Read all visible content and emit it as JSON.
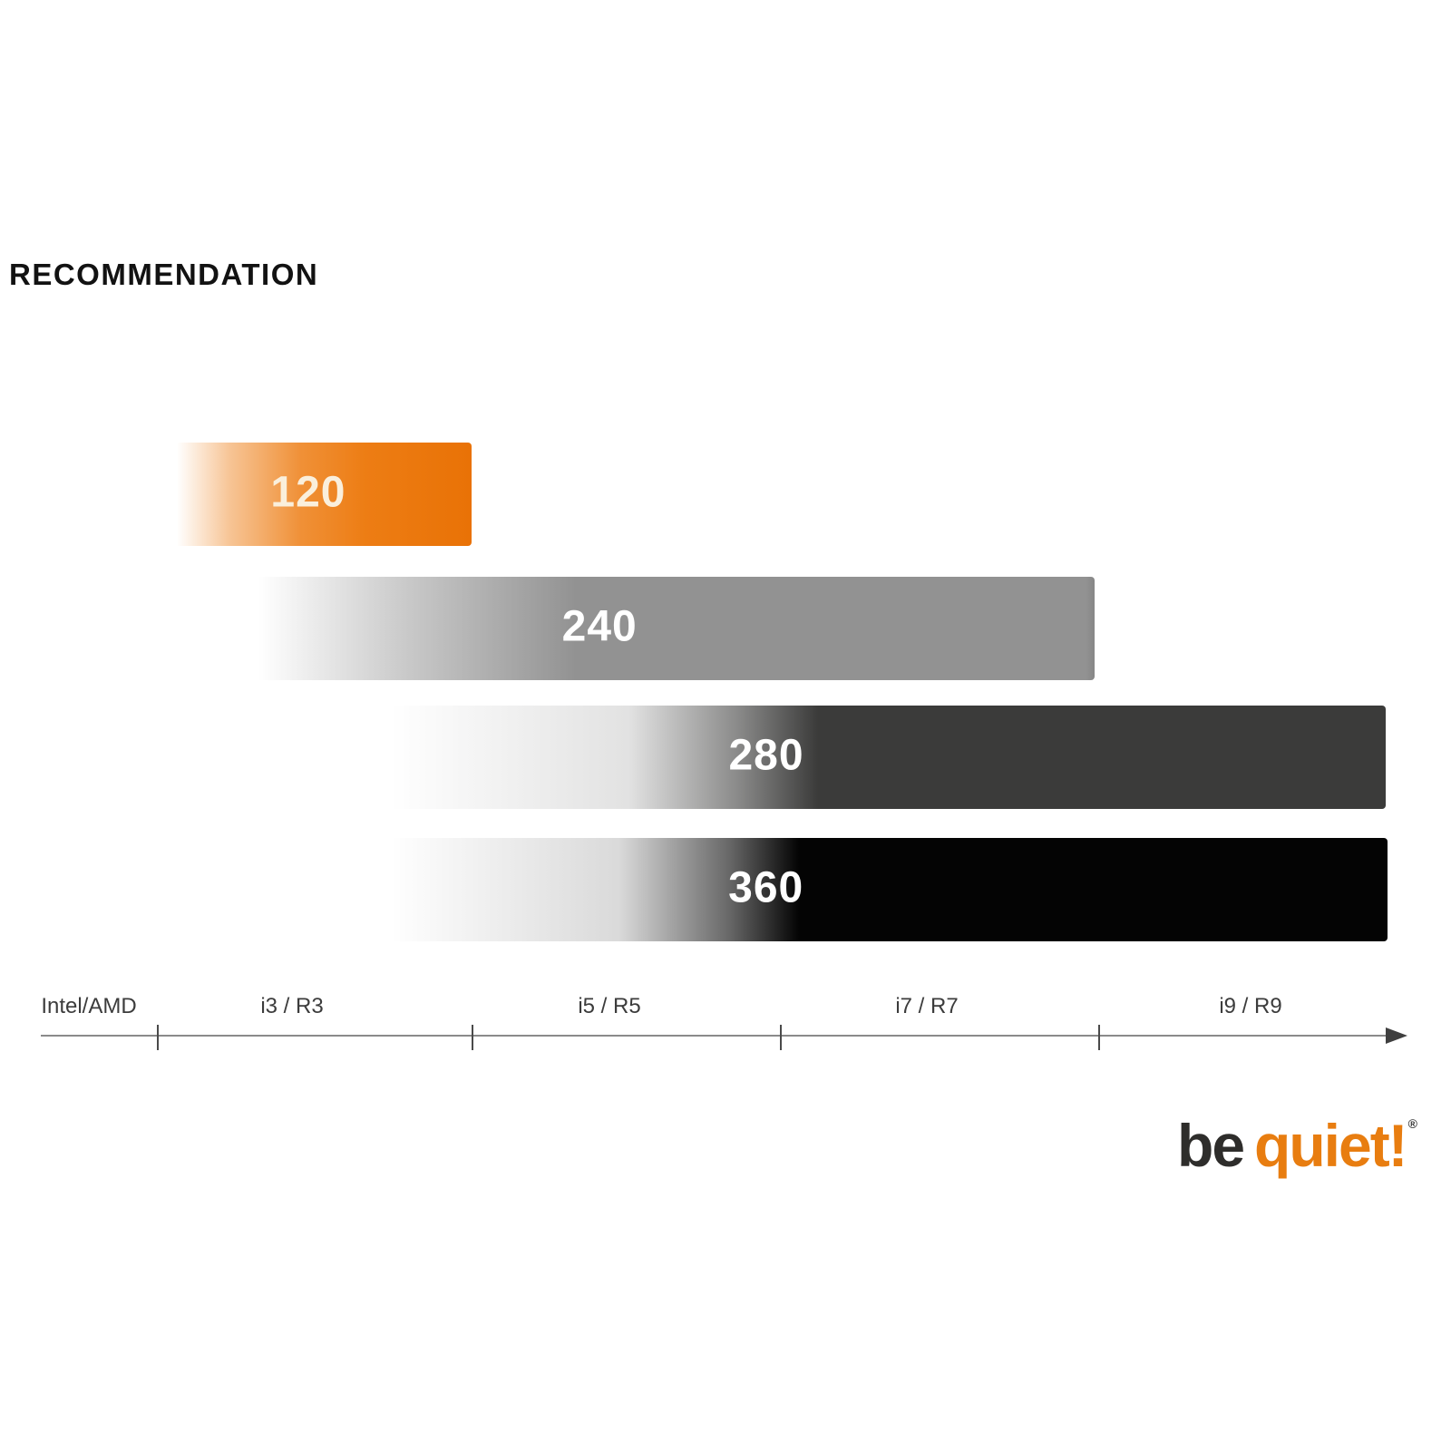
{
  "title": "RECOMMENDATION",
  "chart_data": {
    "type": "bar",
    "orientation": "horizontal-range",
    "title": "RECOMMENDATION",
    "subtitle": "",
    "unit_hint": "radiator size in mm",
    "axis": {
      "position": "bottom",
      "arrow_end": true,
      "tick_labels": [
        "Intel/AMD",
        "i3 / R3",
        "i5 / R5",
        "i7 / R7",
        "i9 / R9"
      ]
    },
    "bars": [
      {
        "label": "120",
        "value": 120,
        "color": "#ed7d14",
        "fade_from": "white-left",
        "starts_at_segment": "i3 / R3",
        "ends_at_segment": "i3 / R3",
        "start_frac": 0.1,
        "end_frac": 0.315
      },
      {
        "label": "240",
        "value": 240,
        "color": "#929292",
        "fade_from": "white-left",
        "starts_at_segment": "i3 / R3",
        "ends_at_segment": "i7 / R7",
        "start_frac": 0.16,
        "end_frac": 0.775
      },
      {
        "label": "280",
        "value": 280,
        "color": "#3b3b3a",
        "fade_from": "white-left",
        "starts_at_segment": "i3 / R3",
        "ends_at_segment": "i9 / R9",
        "start_frac": 0.255,
        "end_frac": 0.985
      },
      {
        "label": "360",
        "value": 360,
        "color": "#040404",
        "fade_from": "white-left",
        "starts_at_segment": "i3 / R3",
        "ends_at_segment": "i9 / R9",
        "start_frac": 0.255,
        "end_frac": 0.985
      }
    ],
    "legend": "none",
    "grid": false
  },
  "brand": {
    "be": "be",
    "quiet": "quiet!",
    "mark": "®",
    "orange": "#e87d10",
    "dark": "#2e2d2b"
  }
}
